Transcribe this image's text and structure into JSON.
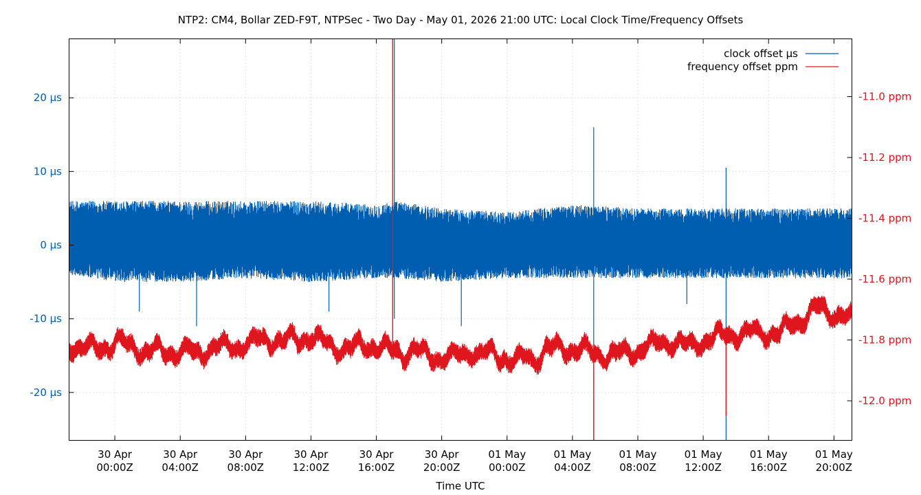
{
  "chart_data": {
    "type": "line",
    "title": "NTP2: CM4, Bollar ZED-F9T, NTPSec - Two Day - May 01, 2026 21:00 UTC: Local Clock Time/Frequency Offsets",
    "xlabel": "Time UTC",
    "ylabel": "",
    "y2label": "",
    "grid": true,
    "legend_position": "top-right",
    "x_ticks": [
      {
        "date": "30 Apr",
        "time": "00:00Z",
        "hour": 0
      },
      {
        "date": "30 Apr",
        "time": "04:00Z",
        "hour": 4
      },
      {
        "date": "30 Apr",
        "time": "08:00Z",
        "hour": 8
      },
      {
        "date": "30 Apr",
        "time": "12:00Z",
        "hour": 12
      },
      {
        "date": "30 Apr",
        "time": "16:00Z",
        "hour": 16
      },
      {
        "date": "30 Apr",
        "time": "20:00Z",
        "hour": 20
      },
      {
        "date": "01 May",
        "time": "00:00Z",
        "hour": 24
      },
      {
        "date": "01 May",
        "time": "04:00Z",
        "hour": 28
      },
      {
        "date": "01 May",
        "time": "08:00Z",
        "hour": 32
      },
      {
        "date": "01 May",
        "time": "12:00Z",
        "hour": 36
      },
      {
        "date": "01 May",
        "time": "16:00Z",
        "hour": 40
      },
      {
        "date": "01 May",
        "time": "20:00Z",
        "hour": 44
      }
    ],
    "xlim_hours": [
      -2.8,
      45.1
    ],
    "ylim": [
      -26.5,
      28
    ],
    "y_ticks": [
      {
        "value": 20,
        "label": "20 µs"
      },
      {
        "value": 10,
        "label": "10 µs"
      },
      {
        "value": 0,
        "label": "0 µs"
      },
      {
        "value": -10,
        "label": "-10 µs"
      },
      {
        "value": -20,
        "label": "-20 µs"
      }
    ],
    "y2lim": [
      -12.13,
      -10.81
    ],
    "y2_ticks": [
      {
        "value": -11.0,
        "label": "-11.0 ppm"
      },
      {
        "value": -11.2,
        "label": "-11.2 ppm"
      },
      {
        "value": -11.4,
        "label": "-11.4 ppm"
      },
      {
        "value": -11.6,
        "label": "-11.6 ppm"
      },
      {
        "value": -11.8,
        "label": "-11.8 ppm"
      },
      {
        "value": -12.0,
        "label": "-12.0 ppm"
      }
    ],
    "series": [
      {
        "name": "clock offset µs",
        "axis": "left",
        "color": "#005eb0",
        "x": [
          -2.8,
          0,
          4,
          8,
          12,
          16,
          17.1,
          20,
          24,
          28,
          32,
          36,
          40,
          44,
          45.1
        ],
        "y_max": [
          6,
          6,
          6,
          6,
          6,
          5.5,
          6,
          5,
          4.5,
          5.5,
          5,
          5,
          5,
          5,
          5
        ],
        "y_min": [
          -4,
          -5,
          -5,
          -4.5,
          -5,
          -4.5,
          -4.5,
          -5,
          -4.5,
          -4.5,
          -4.5,
          -4.5,
          -4.5,
          -4.5,
          -4.5
        ],
        "spikes": [
          {
            "x": 17.1,
            "value": 28
          },
          {
            "x": 17.1,
            "value": -10
          },
          {
            "x": 29.3,
            "value": 16
          },
          {
            "x": 29.3,
            "value": -26.5
          },
          {
            "x": 37.4,
            "value": 10.5
          },
          {
            "x": 37.4,
            "value": -26.5
          },
          {
            "x": 1.5,
            "value": -9
          },
          {
            "x": 5.0,
            "value": -11
          },
          {
            "x": 13.1,
            "value": -9
          },
          {
            "x": 21.2,
            "value": -11
          },
          {
            "x": 35.0,
            "value": -8
          }
        ]
      },
      {
        "name": "frequency offset ppm",
        "axis": "right",
        "color": "#e0161e",
        "x": [
          -2.8,
          -1.5,
          0,
          2,
          4,
          6,
          8,
          10,
          12,
          14,
          16,
          18,
          20,
          22,
          24,
          26,
          28,
          30,
          32,
          34,
          36,
          38,
          40,
          42,
          43,
          44,
          45.1
        ],
        "y": [
          -11.82,
          -11.83,
          -11.81,
          -11.82,
          -11.83,
          -11.83,
          -11.81,
          -11.82,
          -11.8,
          -11.83,
          -11.82,
          -11.83,
          -11.84,
          -11.84,
          -11.86,
          -11.85,
          -11.84,
          -11.85,
          -11.83,
          -11.81,
          -11.82,
          -11.8,
          -11.77,
          -11.73,
          -11.69,
          -11.72,
          -11.74
        ],
        "spread": 0.05,
        "spikes": [
          {
            "x": 17.0,
            "value": -10.81
          },
          {
            "x": 29.3,
            "value": -12.13
          },
          {
            "x": 37.4,
            "value": -12.05
          }
        ]
      }
    ]
  }
}
